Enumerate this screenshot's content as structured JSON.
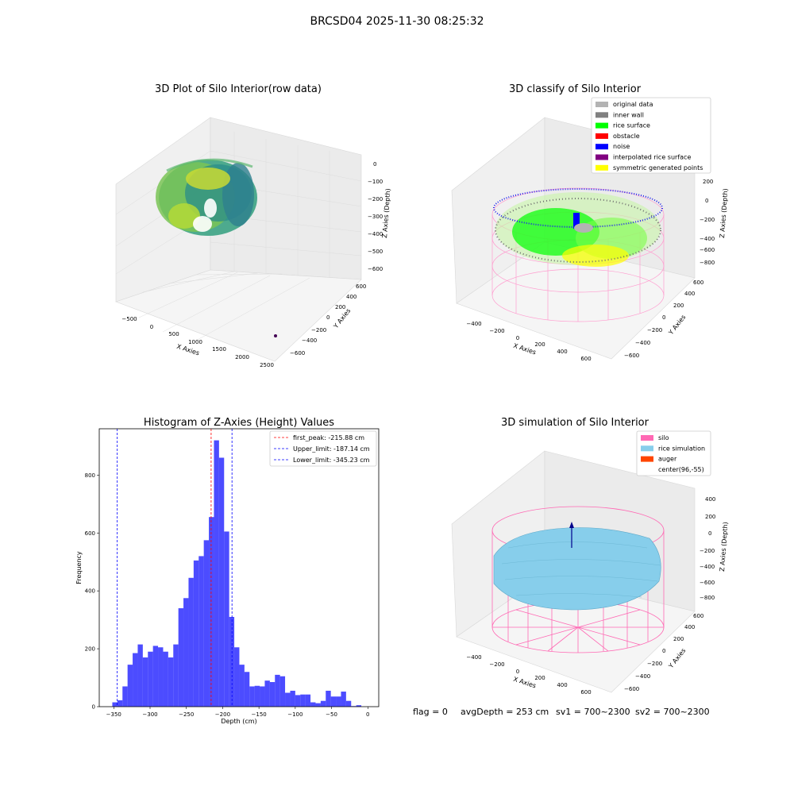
{
  "suptitle": "BRCSD04 2025-11-30 08:25:32",
  "panels": {
    "raw": {
      "title": "3D Plot of Silo Interior(row data)",
      "xlabel": "X Axies",
      "ylabel": "Y Axies",
      "zlabel": "Z Axies (Depth)",
      "xticks": [
        "−500",
        "0",
        "500",
        "1000",
        "1500",
        "2000",
        "2500"
      ],
      "yticks": [
        "600",
        "400",
        "200",
        "0",
        "−200",
        "−400",
        "−600"
      ],
      "zticks": [
        "0",
        "−100",
        "−200",
        "−300",
        "−400",
        "−500",
        "−600"
      ]
    },
    "classify": {
      "title": "3D classify of Silo Interior",
      "xlabel": "X Axies",
      "ylabel": "Y Axies",
      "zlabel": "Z Axies (Depth)",
      "xticks": [
        "−400",
        "−200",
        "0",
        "200",
        "400",
        "600"
      ],
      "yticks": [
        "600",
        "400",
        "200",
        "0",
        "−200",
        "−400",
        "−600"
      ],
      "zticks": [
        "200",
        "0",
        "−200",
        "−400",
        "−600",
        "−800"
      ],
      "legend": [
        {
          "label": "original data",
          "color": "#b3b3b3"
        },
        {
          "label": "inner wall",
          "color": "#808080"
        },
        {
          "label": "rice surface",
          "color": "#00ff00"
        },
        {
          "label": "obstacle",
          "color": "#ff0000"
        },
        {
          "label": "noise",
          "color": "#0000ff"
        },
        {
          "label": "interpolated rice surface",
          "color": "#800080"
        },
        {
          "label": "symmetric generated points",
          "color": "#ffff00"
        }
      ]
    },
    "simulation": {
      "title": "3D simulation of Silo Interior",
      "xlabel": "X Axies",
      "ylabel": "Y Axies",
      "zlabel": "Z Axies (Depth)",
      "xticks": [
        "−400",
        "−200",
        "0",
        "200",
        "400",
        "600"
      ],
      "yticks": [
        "600",
        "400",
        "200",
        "0",
        "−200",
        "−400",
        "−600"
      ],
      "zticks": [
        "400",
        "200",
        "0",
        "−200",
        "−400",
        "−600",
        "−800"
      ],
      "legend": [
        {
          "label": "silo",
          "color": "#ff69b4"
        },
        {
          "label": "rice simulation",
          "color": "#87ceeb"
        },
        {
          "label": "auger",
          "color": "#ff4500"
        },
        {
          "label": "center(96,-55)",
          "color": ""
        }
      ]
    }
  },
  "chart_data": {
    "type": "bar",
    "title": "Histogram of Z-Axies (Height) Values",
    "xlabel": "Depth (cm)",
    "ylabel": "Frequency",
    "xlim": [
      -370,
      15
    ],
    "ylim": [
      0,
      960
    ],
    "bin_width": 7,
    "bin_start": -352,
    "values": [
      15,
      22,
      70,
      145,
      185,
      215,
      170,
      190,
      210,
      205,
      190,
      170,
      215,
      340,
      375,
      445,
      505,
      520,
      575,
      655,
      920,
      860,
      605,
      310,
      205,
      145,
      120,
      70,
      72,
      70,
      90,
      85,
      110,
      105,
      48,
      55,
      40,
      42,
      42,
      15,
      12,
      20,
      55,
      35,
      35,
      52,
      20,
      2,
      5
    ],
    "color": "#0000ff",
    "xticks": [
      {
        "v": -350,
        "label": "−350"
      },
      {
        "v": -300,
        "label": "−300"
      },
      {
        "v": -250,
        "label": "−250"
      },
      {
        "v": -200,
        "label": "−200"
      },
      {
        "v": -150,
        "label": "−150"
      },
      {
        "v": -100,
        "label": "−100"
      },
      {
        "v": -50,
        "label": "−50"
      },
      {
        "v": 0,
        "label": "0"
      }
    ],
    "yticks": [
      0,
      200,
      400,
      600,
      800
    ],
    "lines": [
      {
        "x": -215.88,
        "color": "#ff0000",
        "label": "first_peak: -215.88 cm"
      },
      {
        "x": -187.14,
        "color": "#0000ff",
        "label": "Upper_limit: -187.14 cm"
      },
      {
        "x": -345.23,
        "color": "#0000ff",
        "label": "Lower_limit: -345.23 cm"
      }
    ]
  },
  "footer": {
    "flag": "flag = 0",
    "avg": "avgDepth = 253 cm",
    "sv1": "sv1 = 700~2300",
    "sv2": "sv2 = 700~2300"
  }
}
